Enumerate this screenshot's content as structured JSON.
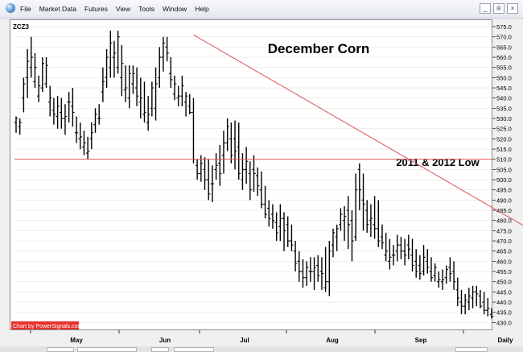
{
  "menu": [
    "File",
    "Market Data",
    "Futures",
    "View",
    "Tools",
    "Window",
    "Help"
  ],
  "window_buttons": [
    "_",
    "®",
    "×"
  ],
  "colors": {
    "trendline": "#e05050",
    "bars": "#000000",
    "credit_bg": "#e8312c",
    "grid": "#dcdcdc"
  },
  "chart_data": {
    "type": "ohlc",
    "symbol": "ZCZ3",
    "title": "December Corn",
    "annotation": "2011 & 2012 Low",
    "credit": "Chart by PowerSignals.com",
    "period": "Daily",
    "months": [
      "May",
      "Jun",
      "Jul",
      "Aug",
      "Sep"
    ],
    "ylim": [
      427,
      577
    ],
    "yticks": [
      430.0,
      435.0,
      440.0,
      445.0,
      450.0,
      455.0,
      460.0,
      465.0,
      470.0,
      475.0,
      480.0,
      485.0,
      490.0,
      495.0,
      500.0,
      505.0,
      510.0,
      515.0,
      520.0,
      525.0,
      530.0,
      535.0,
      540.0,
      545.0,
      550.0,
      555.0,
      560.0,
      565.0,
      570.0,
      575.0
    ],
    "support_level": 510.0,
    "trendline": [
      {
        "bar": 47,
        "price": 571.0
      },
      {
        "bar": 148,
        "price": 463.0
      }
    ],
    "bars": [
      [
        528,
        531,
        523,
        530
      ],
      [
        526,
        530,
        522,
        528
      ],
      [
        540,
        550,
        533,
        547
      ],
      [
        550,
        564,
        540,
        558
      ],
      [
        555,
        570,
        550,
        560
      ],
      [
        548,
        562,
        545,
        555
      ],
      [
        541,
        551,
        538,
        546
      ],
      [
        545,
        560,
        543,
        557
      ],
      [
        547,
        560,
        545,
        556
      ],
      [
        538,
        546,
        531,
        540
      ],
      [
        534,
        540,
        527,
        532
      ],
      [
        531,
        541,
        525,
        536
      ],
      [
        533,
        540,
        525,
        530
      ],
      [
        530,
        537,
        522,
        531
      ],
      [
        538,
        543,
        528,
        538
      ],
      [
        536,
        545,
        526,
        533
      ],
      [
        523,
        531,
        518,
        523
      ],
      [
        520,
        528,
        515,
        521
      ],
      [
        516,
        524,
        512,
        518
      ],
      [
        513,
        521,
        510,
        514
      ],
      [
        520,
        528,
        515,
        523
      ],
      [
        527,
        535,
        523,
        532
      ],
      [
        530,
        537,
        527,
        530
      ],
      [
        543,
        555,
        538,
        548
      ],
      [
        550,
        564,
        545,
        560
      ],
      [
        555,
        573,
        550,
        567
      ],
      [
        560,
        568,
        550,
        562
      ],
      [
        555,
        573,
        552,
        570
      ],
      [
        550,
        566,
        541,
        557
      ],
      [
        544,
        556,
        538,
        545
      ],
      [
        540,
        556,
        535,
        552
      ],
      [
        547,
        556,
        542,
        552
      ],
      [
        545,
        555,
        536,
        541
      ],
      [
        538,
        550,
        530,
        540
      ],
      [
        532,
        548,
        528,
        533
      ],
      [
        528,
        541,
        524,
        532
      ],
      [
        535,
        548,
        531,
        545
      ],
      [
        535,
        555,
        529,
        547
      ],
      [
        550,
        565,
        545,
        560
      ],
      [
        560,
        570,
        553,
        567
      ],
      [
        565,
        570,
        558,
        562
      ],
      [
        552,
        560,
        545,
        549
      ],
      [
        542,
        551,
        539,
        547
      ],
      [
        540,
        546,
        536,
        541
      ],
      [
        541,
        551,
        536,
        546
      ],
      [
        538,
        543,
        531,
        541
      ],
      [
        536,
        542,
        532,
        533
      ],
      [
        533,
        540,
        508,
        510
      ],
      [
        507,
        510,
        500,
        503
      ],
      [
        503,
        512,
        499,
        508
      ],
      [
        505,
        511,
        495,
        500
      ],
      [
        500,
        510,
        490,
        493
      ],
      [
        498,
        507,
        489,
        498
      ],
      [
        505,
        513,
        500,
        507
      ],
      [
        508,
        517,
        497,
        503
      ],
      [
        512,
        524,
        503,
        518
      ],
      [
        518,
        530,
        514,
        526
      ],
      [
        520,
        528,
        508,
        512
      ],
      [
        520,
        529,
        505,
        514
      ],
      [
        516,
        528,
        500,
        503
      ],
      [
        500,
        513,
        495,
        505
      ],
      [
        505,
        516,
        498,
        509
      ],
      [
        503,
        509,
        490,
        495
      ],
      [
        505,
        512,
        494,
        503
      ],
      [
        502,
        506,
        492,
        497
      ],
      [
        495,
        504,
        486,
        488
      ],
      [
        488,
        497,
        481,
        483
      ],
      [
        486,
        490,
        477,
        481
      ],
      [
        483,
        488,
        476,
        480
      ],
      [
        479,
        484,
        470,
        474
      ],
      [
        477,
        488,
        470,
        481
      ],
      [
        481,
        484,
        465,
        475
      ],
      [
        478,
        482,
        467,
        470
      ],
      [
        470,
        478,
        465,
        468
      ],
      [
        465,
        470,
        455,
        459
      ],
      [
        460,
        465,
        450,
        455
      ],
      [
        455,
        461,
        447,
        452
      ],
      [
        452,
        460,
        448,
        457
      ],
      [
        455,
        462,
        450,
        455
      ],
      [
        455,
        462,
        446,
        457
      ],
      [
        458,
        463,
        450,
        453
      ],
      [
        455,
        462,
        446,
        454
      ],
      [
        447,
        467,
        445,
        450
      ],
      [
        450,
        470,
        443,
        465
      ],
      [
        468,
        476,
        462,
        474
      ],
      [
        472,
        478,
        465,
        476
      ],
      [
        478,
        486,
        475,
        483
      ],
      [
        480,
        487,
        470,
        482
      ],
      [
        485,
        492,
        466,
        478
      ],
      [
        480,
        485,
        460,
        470
      ],
      [
        472,
        503,
        470,
        495
      ],
      [
        505,
        508,
        485,
        495
      ],
      [
        490,
        503,
        475,
        488
      ],
      [
        485,
        490,
        474,
        478
      ],
      [
        480,
        488,
        472,
        481
      ],
      [
        478,
        492,
        471,
        476
      ],
      [
        476,
        490,
        467,
        470
      ],
      [
        472,
        478,
        466,
        469
      ],
      [
        463,
        474,
        460,
        465
      ],
      [
        460,
        471,
        456,
        462
      ],
      [
        463,
        468,
        458,
        463
      ],
      [
        465,
        473,
        460,
        468
      ],
      [
        468,
        472,
        461,
        465
      ],
      [
        465,
        471,
        458,
        463
      ],
      [
        468,
        473,
        461,
        466
      ],
      [
        463,
        471,
        455,
        458
      ],
      [
        460,
        466,
        452,
        455
      ],
      [
        458,
        463,
        451,
        454
      ],
      [
        455,
        468,
        453,
        462
      ],
      [
        460,
        466,
        454,
        457
      ],
      [
        455,
        462,
        450,
        452
      ],
      [
        453,
        459,
        450,
        457
      ],
      [
        450,
        455,
        447,
        451
      ],
      [
        450,
        456,
        446,
        451
      ],
      [
        452,
        458,
        449,
        456
      ],
      [
        457,
        462,
        450,
        454
      ],
      [
        455,
        460,
        446,
        450
      ],
      [
        446,
        452,
        438,
        442
      ],
      [
        440,
        446,
        434,
        438
      ],
      [
        438,
        444,
        434,
        441
      ],
      [
        440,
        447,
        436,
        443
      ],
      [
        442,
        448,
        437,
        445
      ],
      [
        445,
        448,
        438,
        444
      ],
      [
        443,
        446,
        437,
        438
      ],
      [
        440,
        445,
        434,
        436
      ],
      [
        436,
        442,
        433,
        437
      ],
      [
        434,
        437,
        432,
        433
      ]
    ]
  }
}
